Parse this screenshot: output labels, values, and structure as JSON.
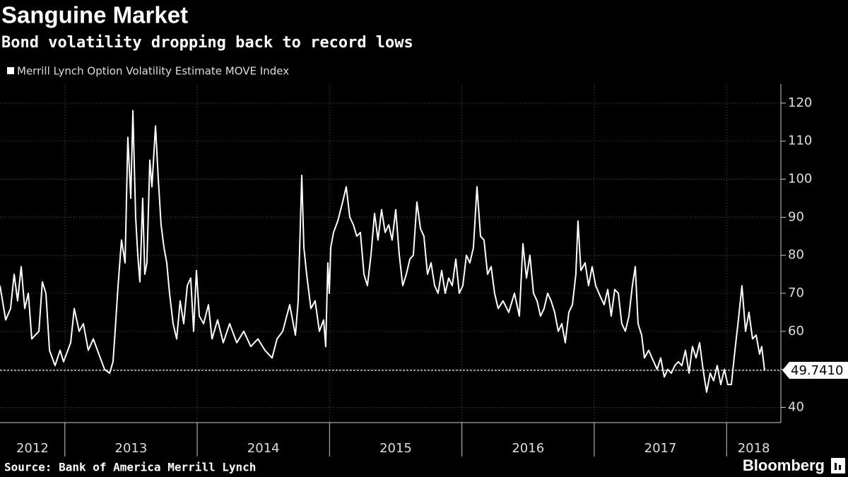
{
  "chart_data": {
    "type": "line",
    "title": "Sanguine Market",
    "subtitle": "Bond volatility dropping back to record lows",
    "source": "Source: Bank of America Merrill Lynch",
    "x": [
      2012.51,
      2012.553,
      2012.59,
      2012.617,
      2012.643,
      2012.67,
      2012.697,
      2012.724,
      2012.75,
      2012.804,
      2012.83,
      2012.857,
      2012.884,
      2012.926,
      2012.964,
      2012.99,
      2013.044,
      2013.071,
      2013.108,
      2013.14,
      2013.177,
      2013.215,
      2013.257,
      2013.3,
      2013.338,
      2013.364,
      2013.38,
      2013.402,
      2013.428,
      2013.455,
      2013.476,
      2013.498,
      2013.514,
      2013.535,
      2013.551,
      2013.567,
      2013.588,
      2013.604,
      2013.62,
      2013.642,
      2013.658,
      2013.685,
      2013.706,
      2013.727,
      2013.749,
      2013.77,
      2013.791,
      2013.818,
      2013.845,
      2013.871,
      2013.898,
      2013.925,
      2013.951,
      2013.973,
      2013.994,
      2014.016,
      2014.048,
      2014.085,
      2014.112,
      2014.154,
      2014.197,
      2014.245,
      2014.299,
      2014.352,
      2014.405,
      2014.459,
      2014.512,
      2014.566,
      2014.603,
      2014.646,
      2014.699,
      2014.742,
      2014.763,
      2014.79,
      2014.806,
      2014.827,
      2014.859,
      2014.891,
      2014.923,
      2014.955,
      2014.971,
      2014.987,
      2014.998,
      2015.009,
      2015.03,
      2015.062,
      2015.099,
      2015.126,
      2015.153,
      2015.18,
      2015.206,
      2015.233,
      2015.26,
      2015.286,
      2015.313,
      2015.34,
      2015.366,
      2015.393,
      2015.42,
      2015.447,
      2015.473,
      2015.5,
      2015.527,
      2015.553,
      2015.58,
      2015.607,
      2015.633,
      2015.66,
      2015.687,
      2015.713,
      2015.74,
      2015.767,
      2015.794,
      2015.82,
      2015.847,
      2015.874,
      2015.9,
      2015.927,
      2015.954,
      2015.98,
      2016.007,
      2016.034,
      2016.06,
      2016.087,
      2016.114,
      2016.141,
      2016.167,
      2016.194,
      2016.221,
      2016.247,
      2016.274,
      2016.311,
      2016.354,
      2016.397,
      2016.434,
      2016.461,
      2016.488,
      2016.514,
      2016.541,
      2016.568,
      2016.594,
      2016.621,
      2016.648,
      2016.674,
      2016.701,
      2016.728,
      2016.755,
      2016.781,
      2016.808,
      2016.835,
      2016.861,
      2016.877,
      2016.899,
      2016.931,
      2016.957,
      2016.984,
      2017.011,
      2017.048,
      2017.075,
      2017.102,
      2017.128,
      2017.155,
      2017.182,
      2017.208,
      2017.235,
      2017.262,
      2017.288,
      2017.31,
      2017.331,
      2017.358,
      2017.379,
      2017.411,
      2017.449,
      2017.475,
      2017.502,
      2017.529,
      2017.555,
      2017.582,
      2017.609,
      2017.635,
      2017.662,
      2017.689,
      2017.716,
      2017.742,
      2017.769,
      2017.796,
      2017.822,
      2017.849,
      2017.876,
      2017.902,
      2017.929,
      2017.956,
      2017.983,
      2018.009,
      2018.036,
      2018.063,
      2018.089,
      2018.116,
      2018.143,
      2018.169,
      2018.196,
      2018.223,
      2018.249,
      2018.265,
      2018.287
    ],
    "series": [
      {
        "name": "Merrill Lynch Option Volatility Estimate MOVE Index",
        "color": "#ffffff",
        "values": [
          72,
          63,
          66,
          75,
          68,
          77,
          66,
          70,
          58,
          60,
          73,
          70,
          55,
          51,
          55,
          52,
          57,
          66,
          60,
          62,
          55,
          58,
          54,
          50,
          49,
          52,
          60,
          72,
          84,
          78,
          111,
          95,
          118,
          90,
          80,
          73,
          95,
          75,
          78,
          105,
          98,
          114,
          100,
          88,
          82,
          78,
          70,
          62,
          58,
          68,
          62,
          72,
          74,
          60,
          76,
          64,
          62,
          67,
          58,
          63,
          57,
          62,
          57,
          60,
          56,
          58,
          55,
          53,
          58,
          60,
          67,
          59,
          68,
          101,
          82,
          75,
          66,
          68,
          60,
          63,
          56,
          78,
          70,
          82,
          86,
          89,
          94,
          98,
          90,
          88,
          85,
          86,
          75,
          72,
          80,
          91,
          84,
          92,
          86,
          88,
          84,
          92,
          80,
          72,
          75,
          79,
          80,
          94,
          87,
          85,
          75,
          78,
          72,
          70,
          76,
          70,
          74,
          72,
          79,
          70,
          72,
          80,
          78,
          82,
          98,
          85,
          84,
          75,
          77,
          70,
          66,
          68,
          65,
          70,
          64,
          83,
          74,
          80,
          70,
          68,
          64,
          66,
          70,
          68,
          65,
          60,
          62,
          57,
          65,
          67,
          75,
          89,
          76,
          78,
          72,
          77,
          72,
          69,
          67,
          71,
          64,
          71,
          70,
          62,
          60,
          64,
          72,
          77,
          62,
          59,
          53,
          55,
          52,
          50,
          53,
          48,
          50,
          49,
          51,
          52,
          51,
          55,
          49,
          56,
          53,
          57,
          50,
          44,
          49,
          47,
          51,
          46,
          50,
          46,
          46,
          55,
          63,
          72,
          60,
          65,
          58,
          59,
          54,
          56,
          49.741
        ]
      }
    ],
    "reference_line": {
      "value": 49.741,
      "label": "49.7410"
    },
    "xlim": [
      2012.51,
      2018.41
    ],
    "xticks": [
      2012,
      2013,
      2014,
      2015,
      2016,
      2017,
      2018
    ],
    "ylim": [
      36,
      125
    ],
    "yticks": [
      40,
      50,
      60,
      70,
      80,
      90,
      100,
      110,
      120
    ],
    "grid": true
  },
  "brand": "Bloomberg"
}
